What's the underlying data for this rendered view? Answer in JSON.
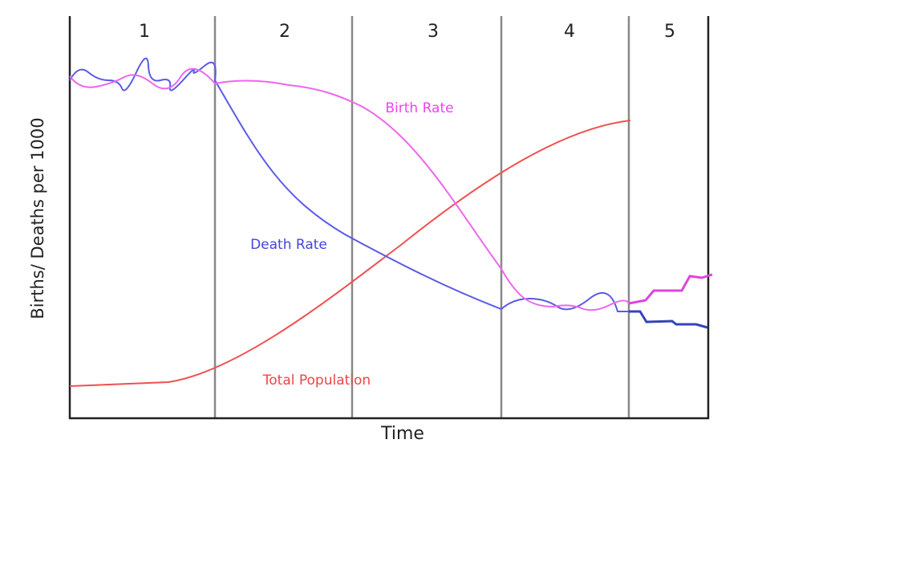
{
  "stages": [
    "1",
    "2",
    "3",
    "4",
    "5"
  ],
  "axes": {
    "y_label": "Births/ Deaths per 1000",
    "x_label": "Time"
  },
  "curves": {
    "birth_rate": "Birth Rate",
    "death_rate": "Death Rate",
    "total_population": "Total Population"
  }
}
